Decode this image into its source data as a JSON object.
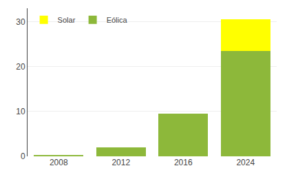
{
  "chart_data": {
    "type": "bar",
    "stacked": true,
    "categories": [
      "2008",
      "2012",
      "2016",
      "2024"
    ],
    "series": [
      {
        "name": "Eólica",
        "color": "#8DB83A",
        "values": [
          0.2,
          2.0,
          9.5,
          23.5
        ]
      },
      {
        "name": "Solar",
        "color": "#FFFF00",
        "values": [
          0.0,
          0.0,
          0.0,
          7.0
        ]
      }
    ],
    "ylim": [
      0,
      33
    ],
    "yticks": [
      0,
      10,
      20,
      30
    ],
    "grid": true,
    "legend": "upper left"
  }
}
